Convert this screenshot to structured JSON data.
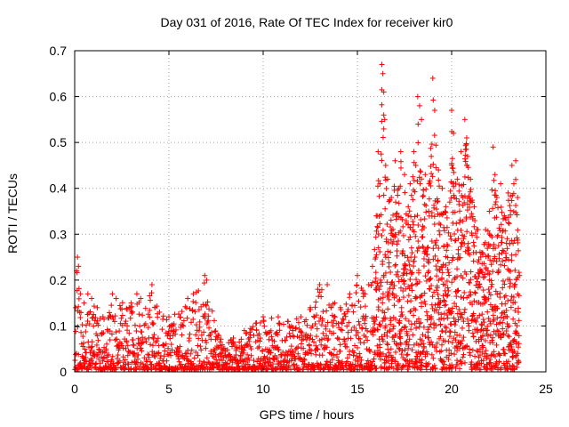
{
  "chart_data": {
    "type": "scatter",
    "title": "Day 031 of 2016, Rate Of TEC Index for receiver kir0",
    "xlabel": "GPS time / hours",
    "ylabel": "ROTI / TECUs",
    "xlim": [
      0,
      25
    ],
    "ylim": [
      0,
      0.7
    ],
    "xticks": [
      0,
      5,
      10,
      15,
      20,
      25
    ],
    "yticks": [
      0,
      0.1,
      0.2,
      0.3,
      0.4,
      0.5,
      0.6,
      0.7
    ],
    "xtick_labels": [
      "0",
      "5",
      "10",
      "15",
      "20",
      "25"
    ],
    "ytick_labels": [
      "0",
      "0.1",
      "0.2",
      "0.3",
      "0.4",
      "0.5",
      "0.6",
      "0.7"
    ],
    "grid": true,
    "marker": "+",
    "colors": {
      "series": "#ff0000",
      "grid": "#a0a0a0",
      "axes": "#000000"
    },
    "series": [
      {
        "name": "ROTI",
        "points": [
          [
            0.05,
            0.14
          ],
          [
            0.1,
            0.22
          ],
          [
            0.15,
            0.25
          ],
          [
            0.2,
            0.23
          ],
          [
            0.3,
            0.17
          ],
          [
            0.5,
            0.15
          ],
          [
            0.7,
            0.17
          ],
          [
            0.9,
            0.16
          ],
          [
            1.2,
            0.14
          ],
          [
            1.5,
            0.12
          ],
          [
            2.0,
            0.17
          ],
          [
            2.2,
            0.16
          ],
          [
            3.0,
            0.15
          ],
          [
            3.3,
            0.17
          ],
          [
            3.5,
            0.16
          ],
          [
            4.1,
            0.19
          ],
          [
            4.5,
            0.13
          ],
          [
            5.0,
            0.12
          ],
          [
            6.0,
            0.16
          ],
          [
            6.3,
            0.17
          ],
          [
            6.9,
            0.21
          ],
          [
            7.0,
            0.2
          ],
          [
            7.6,
            0.08
          ],
          [
            8.3,
            0.07
          ],
          [
            9.0,
            0.09
          ],
          [
            10.0,
            0.12
          ],
          [
            10.8,
            0.12
          ],
          [
            11.3,
            0.11
          ],
          [
            12.0,
            0.12
          ],
          [
            12.5,
            0.14
          ],
          [
            12.9,
            0.18
          ],
          [
            13.0,
            0.19
          ],
          [
            13.4,
            0.19
          ],
          [
            13.8,
            0.15
          ],
          [
            14.1,
            0.14
          ],
          [
            14.6,
            0.17
          ],
          [
            15.0,
            0.21
          ],
          [
            15.4,
            0.17
          ],
          [
            15.6,
            0.19
          ],
          [
            15.8,
            0.23
          ],
          [
            16.0,
            0.34
          ],
          [
            16.1,
            0.48
          ],
          [
            16.2,
            0.41
          ],
          [
            16.3,
            0.67
          ],
          [
            16.35,
            0.65
          ],
          [
            16.4,
            0.61
          ],
          [
            16.45,
            0.55
          ],
          [
            16.5,
            0.45
          ],
          [
            16.6,
            0.42
          ],
          [
            16.8,
            0.38
          ],
          [
            17.0,
            0.46
          ],
          [
            17.2,
            0.4
          ],
          [
            17.3,
            0.48
          ],
          [
            17.5,
            0.43
          ],
          [
            17.7,
            0.36
          ],
          [
            17.8,
            0.41
          ],
          [
            18.0,
            0.48
          ],
          [
            18.1,
            0.45
          ],
          [
            18.2,
            0.6
          ],
          [
            18.3,
            0.58
          ],
          [
            18.4,
            0.55
          ],
          [
            18.6,
            0.43
          ],
          [
            18.8,
            0.41
          ],
          [
            19.0,
            0.64
          ],
          [
            19.1,
            0.57
          ],
          [
            19.3,
            0.44
          ],
          [
            19.5,
            0.4
          ],
          [
            19.7,
            0.36
          ],
          [
            19.9,
            0.37
          ],
          [
            20.0,
            0.57
          ],
          [
            20.1,
            0.52
          ],
          [
            20.3,
            0.42
          ],
          [
            20.5,
            0.48
          ],
          [
            20.6,
            0.38
          ],
          [
            20.7,
            0.55
          ],
          [
            20.8,
            0.51
          ],
          [
            21.0,
            0.42
          ],
          [
            21.2,
            0.36
          ],
          [
            21.4,
            0.31
          ],
          [
            21.6,
            0.26
          ],
          [
            21.8,
            0.31
          ],
          [
            22.0,
            0.35
          ],
          [
            22.2,
            0.49
          ],
          [
            22.3,
            0.43
          ],
          [
            22.4,
            0.38
          ],
          [
            22.6,
            0.41
          ],
          [
            22.8,
            0.34
          ],
          [
            23.0,
            0.39
          ],
          [
            23.2,
            0.45
          ],
          [
            23.3,
            0.41
          ],
          [
            23.4,
            0.46
          ],
          [
            23.5,
            0.38
          ],
          [
            23.6,
            0.21
          ]
        ]
      }
    ]
  }
}
